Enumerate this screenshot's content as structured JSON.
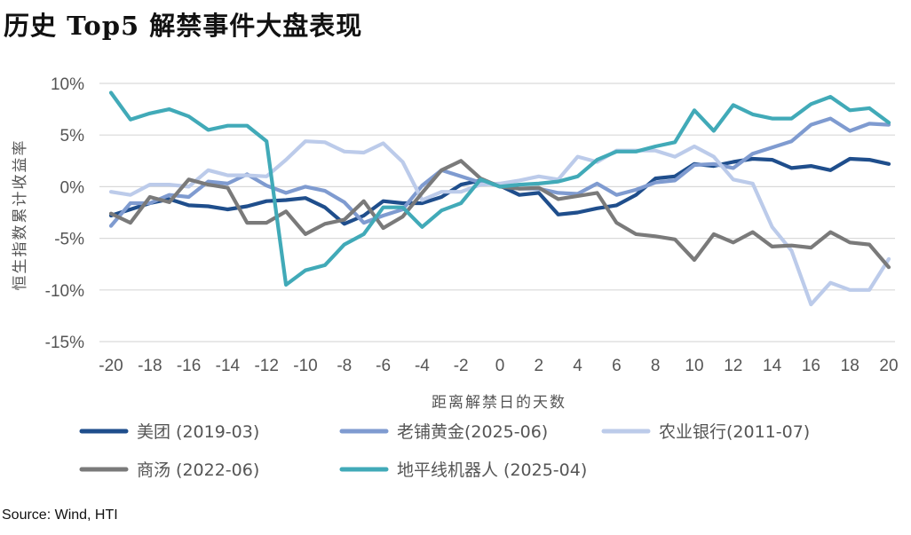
{
  "title": "历史 Top5 解禁事件大盘表现",
  "source": "Source: Wind, HTI",
  "chart_data": {
    "type": "line",
    "title": "历史 Top5 解禁事件大盘表现",
    "xlabel": "距离解禁日的天数",
    "ylabel": "恒生指数累计收益率",
    "xlim": [
      -20,
      20
    ],
    "ylim": [
      -15,
      10
    ],
    "x_ticks": [
      -20,
      -18,
      -16,
      -14,
      -12,
      -10,
      -8,
      -6,
      -4,
      -2,
      0,
      2,
      4,
      6,
      8,
      10,
      12,
      14,
      16,
      18,
      20
    ],
    "x_tick_labels": [
      "-20",
      "-18",
      "-16",
      "-14",
      "-12",
      "-10",
      "-8",
      "-6",
      "-4",
      "-2",
      "0",
      "2",
      "4",
      "6",
      "8",
      "10",
      "12",
      "14",
      "16",
      "18",
      "20"
    ],
    "y_ticks": [
      10,
      5,
      0,
      -5,
      -10,
      -15
    ],
    "y_tick_labels": [
      "10%",
      "5%",
      "0%",
      "-5%",
      "-10%",
      "-15%"
    ],
    "grid": "horizontal",
    "legend_position": "bottom",
    "x": [
      -20,
      -19,
      -18,
      -17,
      -16,
      -15,
      -14,
      -13,
      -12,
      -11,
      -10,
      -9,
      -8,
      -7,
      -6,
      -5,
      -4,
      -3,
      -2,
      -1,
      0,
      1,
      2,
      3,
      4,
      5,
      6,
      7,
      8,
      9,
      10,
      11,
      12,
      13,
      14,
      15,
      16,
      17,
      18,
      19,
      20
    ],
    "series": [
      {
        "name": "美团 (2019-03)",
        "color": "#1f4e8c",
        "values": [
          -2.8,
          -2.2,
          -1.6,
          -1.2,
          -1.8,
          -1.9,
          -2.2,
          -1.9,
          -1.4,
          -1.3,
          -1.1,
          -2.0,
          -3.6,
          -2.8,
          -1.4,
          -1.6,
          -1.6,
          -1.0,
          0.2,
          0.6,
          0.1,
          -0.8,
          -0.6,
          -2.7,
          -2.5,
          -2.1,
          -1.8,
          -0.8,
          0.8,
          1.0,
          2.2,
          2.0,
          2.4,
          2.7,
          2.6,
          1.8,
          2.0,
          1.6,
          2.7,
          2.6,
          2.2
        ]
      },
      {
        "name": "老铺黄金(2025-06)",
        "color": "#7f9bd0",
        "values": [
          -3.8,
          -1.6,
          -1.6,
          -0.8,
          -1.0,
          0.5,
          0.3,
          1.2,
          0.1,
          -0.6,
          0.0,
          -0.4,
          -1.5,
          -3.5,
          -2.8,
          -2.2,
          0.1,
          1.6,
          1.0,
          0.4,
          0.1,
          -0.2,
          -0.2,
          -0.6,
          -0.7,
          0.3,
          -0.8,
          -0.3,
          0.4,
          0.6,
          2.1,
          2.2,
          1.8,
          3.2,
          3.8,
          4.4,
          6.0,
          6.6,
          5.4,
          6.1,
          6.0
        ]
      },
      {
        "name": "农业银行(2011-07)",
        "color": "#bccbea",
        "values": [
          -0.5,
          -0.8,
          0.2,
          0.2,
          0.0,
          1.6,
          1.1,
          1.1,
          1.0,
          2.6,
          4.4,
          4.3,
          3.4,
          3.3,
          4.2,
          2.4,
          -1.3,
          -0.5,
          -0.5,
          0.2,
          0.3,
          0.6,
          1.0,
          0.7,
          2.9,
          2.4,
          3.5,
          3.5,
          3.5,
          2.9,
          3.9,
          2.9,
          0.7,
          0.3,
          -3.9,
          -6.2,
          -11.4,
          -9.3,
          -10.0,
          -10.0,
          -7.0
        ]
      },
      {
        "name": "商汤 (2022-06)",
        "color": "#7a7a7a",
        "values": [
          -2.6,
          -3.5,
          -1.0,
          -1.5,
          0.7,
          0.2,
          -0.1,
          -3.5,
          -3.5,
          -2.4,
          -4.6,
          -3.6,
          -3.2,
          -1.4,
          -4.0,
          -2.9,
          -0.6,
          1.6,
          2.5,
          0.8,
          0.0,
          -0.2,
          -0.1,
          -1.2,
          -0.9,
          -0.6,
          -3.5,
          -4.6,
          -4.8,
          -5.1,
          -7.1,
          -4.6,
          -5.4,
          -4.4,
          -5.8,
          -5.7,
          -5.9,
          -4.4,
          -5.4,
          -5.6,
          -7.8
        ]
      },
      {
        "name": "地平线机器人 (2025-04)",
        "color": "#41aab8",
        "values": [
          9.1,
          6.5,
          7.1,
          7.5,
          6.8,
          5.5,
          5.9,
          5.9,
          4.4,
          -9.5,
          -8.1,
          -7.6,
          -5.6,
          -4.6,
          -2.0,
          -2.0,
          -3.9,
          -2.3,
          -1.6,
          0.7,
          0.0,
          0.2,
          0.3,
          0.5,
          1.0,
          2.6,
          3.4,
          3.4,
          3.9,
          4.3,
          7.4,
          5.4,
          7.9,
          7.0,
          6.6,
          6.6,
          8.0,
          8.7,
          7.4,
          7.6,
          6.2
        ]
      }
    ]
  }
}
